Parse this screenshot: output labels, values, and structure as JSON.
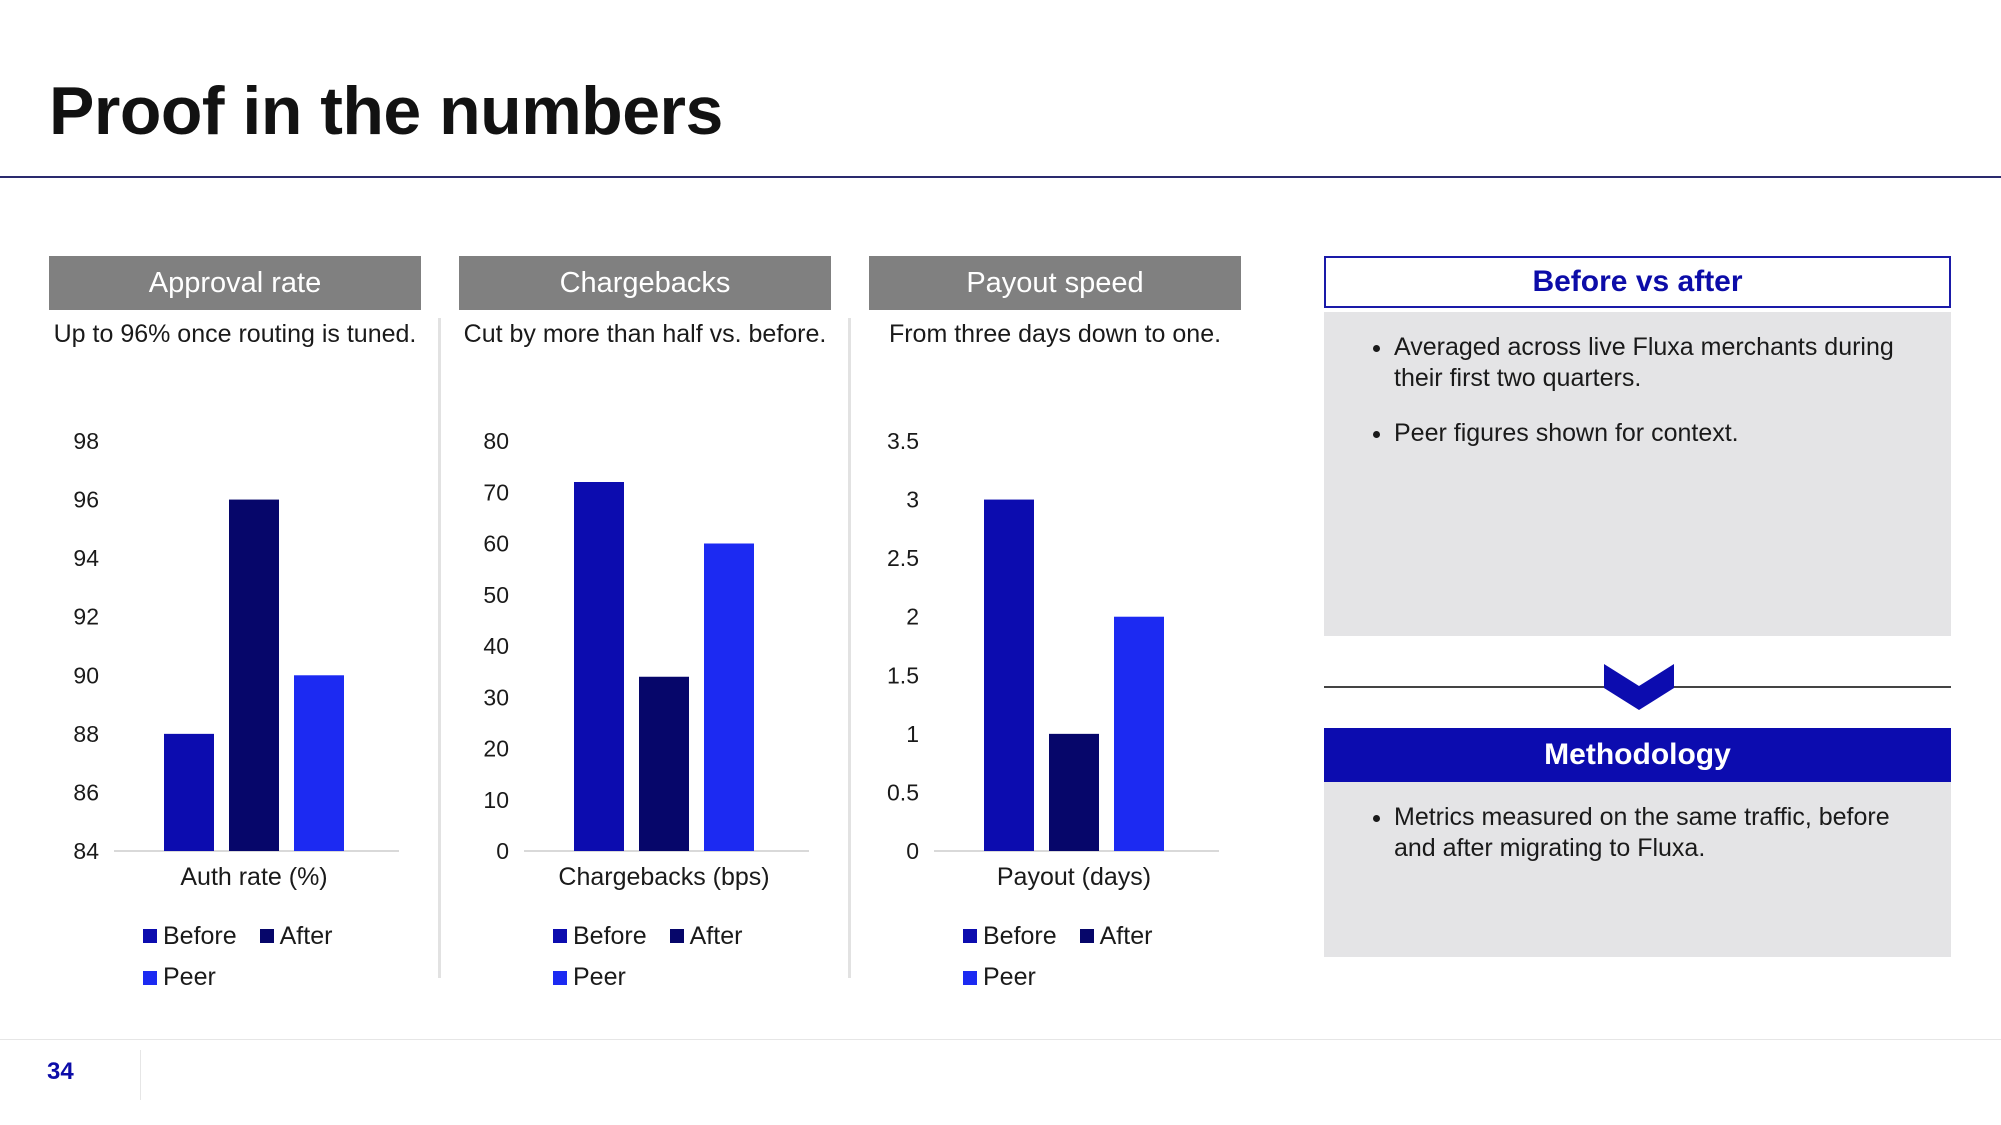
{
  "slide": {
    "title": "Proof in the numbers",
    "page_number": "34"
  },
  "panels": [
    {
      "header": "Approval rate",
      "subtitle": "Up to 96% once routing is tuned."
    },
    {
      "header": "Chargebacks",
      "subtitle": "Cut by more than half vs. before."
    },
    {
      "header": "Payout speed",
      "subtitle": "From three days down to one."
    }
  ],
  "legend": {
    "before": "Before",
    "after": "After",
    "peer": "Peer"
  },
  "colors": {
    "before": "#0c0caf",
    "after": "#06066a",
    "peer": "#1c2af2",
    "header_gray": "#808080",
    "accent": "#0c0ca8"
  },
  "chart_data": [
    {
      "type": "bar",
      "xlabel": "Auth rate (%)",
      "categories": [
        "Auth rate (%)"
      ],
      "series": [
        {
          "name": "Before",
          "values": [
            88
          ]
        },
        {
          "name": "After",
          "values": [
            96
          ]
        },
        {
          "name": "Peer",
          "values": [
            90
          ]
        }
      ],
      "ylim": [
        84,
        98
      ],
      "yticks": [
        "84",
        "86",
        "88",
        "90",
        "92",
        "94",
        "96",
        "98"
      ],
      "grid": false,
      "legend_position": "bottom"
    },
    {
      "type": "bar",
      "xlabel": "Chargebacks (bps)",
      "categories": [
        "Chargebacks (bps)"
      ],
      "series": [
        {
          "name": "Before",
          "values": [
            72
          ]
        },
        {
          "name": "After",
          "values": [
            34
          ]
        },
        {
          "name": "Peer",
          "values": [
            60
          ]
        }
      ],
      "ylim": [
        0,
        80
      ],
      "yticks": [
        "0",
        "10",
        "20",
        "30",
        "40",
        "50",
        "60",
        "70",
        "80"
      ],
      "grid": false,
      "legend_position": "bottom"
    },
    {
      "type": "bar",
      "xlabel": "Payout (days)",
      "categories": [
        "Payout (days)"
      ],
      "series": [
        {
          "name": "Before",
          "values": [
            3
          ]
        },
        {
          "name": "After",
          "values": [
            1
          ]
        },
        {
          "name": "Peer",
          "values": [
            2
          ]
        }
      ],
      "ylim": [
        0,
        3.5
      ],
      "yticks": [
        "0",
        "0.5",
        "1",
        "1.5",
        "2",
        "2.5",
        "3",
        "3.5"
      ],
      "grid": false,
      "legend_position": "bottom"
    }
  ],
  "sidebar": {
    "header": "Before vs after",
    "bullets": [
      "Averaged across live Fluxa merchants during their first two quarters.",
      "Peer figures shown for context."
    ],
    "chevron_icon": "chevron-down-icon",
    "method_header": "Methodology",
    "method_bullets": [
      "Metrics measured on the same traffic, before and after migrating to Fluxa."
    ]
  }
}
